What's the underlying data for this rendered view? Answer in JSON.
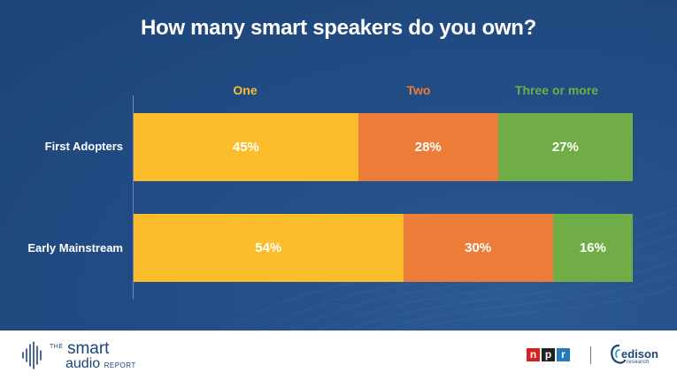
{
  "chart_data": {
    "type": "bar",
    "orientation": "horizontal",
    "stacked": true,
    "title": "How many smart speakers do you own?",
    "categories": [
      "First Adopters",
      "Early Mainstream"
    ],
    "series": [
      {
        "name": "One",
        "values": [
          45,
          54
        ],
        "color": "#fbbd2c"
      },
      {
        "name": "Two",
        "values": [
          28,
          30
        ],
        "color": "#ec7c38"
      },
      {
        "name": "Three or more",
        "values": [
          27,
          16
        ],
        "color": "#70ad47"
      }
    ],
    "data_labels": [
      [
        "45%",
        "54%"
      ],
      [
        "28%",
        "30%"
      ],
      [
        "27%",
        "16%"
      ]
    ],
    "xlim": [
      0,
      100
    ],
    "legend": "top",
    "grid": false
  },
  "footer": {
    "brand": {
      "the": "THE",
      "smart": "smart",
      "audio": "audio",
      "report": "REPORT"
    },
    "npr_letters": [
      "n",
      "p",
      "r"
    ],
    "npr_colors": [
      "#d62021",
      "#222222",
      "#237bbd"
    ],
    "edison_name": "edison",
    "edison_sub": "research"
  },
  "colors": {
    "background": "#1d4479",
    "text": "#ffffff"
  }
}
